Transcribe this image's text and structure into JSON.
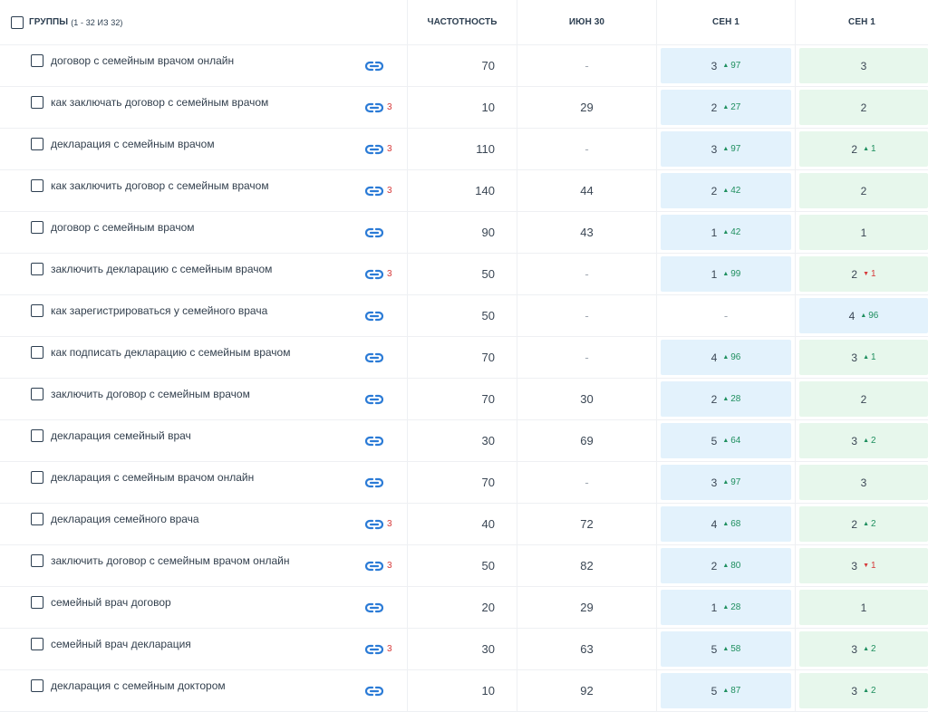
{
  "header": {
    "title": "ГРУППЫ",
    "count": "(1 - 32 ИЗ 32)",
    "col_freq": "ЧАСТОТНОСТЬ",
    "col_jun": "ИЮН 30",
    "col_sep1": "СЕН 1",
    "col_sep2": "СЕН 1"
  },
  "colors": {
    "blue_cell": "#e3f2fc",
    "green_cell": "#e7f7ec",
    "link_icon": "#2b7bd6",
    "up": "#1f8f5f",
    "down": "#d63a3a"
  },
  "rows": [
    {
      "keyword": "договор с семейным врачом онлайн",
      "links": "",
      "freq": "70",
      "jun": "-",
      "s1": {
        "val": "3",
        "delta": "97",
        "dir": "up",
        "bg": "blue"
      },
      "s2": {
        "val": "3",
        "delta": "",
        "dir": "",
        "bg": "green"
      }
    },
    {
      "keyword": "как заключать договор с семейным врачом",
      "links": "3",
      "freq": "10",
      "jun": "29",
      "s1": {
        "val": "2",
        "delta": "27",
        "dir": "up",
        "bg": "blue"
      },
      "s2": {
        "val": "2",
        "delta": "",
        "dir": "",
        "bg": "green"
      }
    },
    {
      "keyword": "декларация с семейным врачом",
      "links": "3",
      "freq": "110",
      "jun": "-",
      "s1": {
        "val": "3",
        "delta": "97",
        "dir": "up",
        "bg": "blue"
      },
      "s2": {
        "val": "2",
        "delta": "1",
        "dir": "up",
        "bg": "green"
      }
    },
    {
      "keyword": "как заключить договор с семейным врачом",
      "links": "3",
      "freq": "140",
      "jun": "44",
      "s1": {
        "val": "2",
        "delta": "42",
        "dir": "up",
        "bg": "blue"
      },
      "s2": {
        "val": "2",
        "delta": "",
        "dir": "",
        "bg": "green"
      }
    },
    {
      "keyword": "договор с семейным врачом",
      "links": "",
      "freq": "90",
      "jun": "43",
      "s1": {
        "val": "1",
        "delta": "42",
        "dir": "up",
        "bg": "blue"
      },
      "s2": {
        "val": "1",
        "delta": "",
        "dir": "",
        "bg": "green"
      }
    },
    {
      "keyword": "заключить декларацию с семейным врачом",
      "links": "3",
      "freq": "50",
      "jun": "-",
      "s1": {
        "val": "1",
        "delta": "99",
        "dir": "up",
        "bg": "blue"
      },
      "s2": {
        "val": "2",
        "delta": "1",
        "dir": "down",
        "bg": "green"
      }
    },
    {
      "keyword": "как зарегистрироваться у семейного врача",
      "links": "",
      "freq": "50",
      "jun": "-",
      "s1": {
        "val": "-",
        "delta": "",
        "dir": "",
        "bg": "none"
      },
      "s2": {
        "val": "4",
        "delta": "96",
        "dir": "up",
        "bg": "blue"
      }
    },
    {
      "keyword": "как подписать декларацию с семейным врачом",
      "links": "",
      "freq": "70",
      "jun": "-",
      "s1": {
        "val": "4",
        "delta": "96",
        "dir": "up",
        "bg": "blue"
      },
      "s2": {
        "val": "3",
        "delta": "1",
        "dir": "up",
        "bg": "green"
      }
    },
    {
      "keyword": "заключить договор с семейным врачом",
      "links": "",
      "freq": "70",
      "jun": "30",
      "s1": {
        "val": "2",
        "delta": "28",
        "dir": "up",
        "bg": "blue"
      },
      "s2": {
        "val": "2",
        "delta": "",
        "dir": "",
        "bg": "green"
      }
    },
    {
      "keyword": "декларация семейный врач",
      "links": "",
      "freq": "30",
      "jun": "69",
      "s1": {
        "val": "5",
        "delta": "64",
        "dir": "up",
        "bg": "blue"
      },
      "s2": {
        "val": "3",
        "delta": "2",
        "dir": "up",
        "bg": "green"
      }
    },
    {
      "keyword": "декларация с семейным врачом онлайн",
      "links": "",
      "freq": "70",
      "jun": "-",
      "s1": {
        "val": "3",
        "delta": "97",
        "dir": "up",
        "bg": "blue"
      },
      "s2": {
        "val": "3",
        "delta": "",
        "dir": "",
        "bg": "green"
      }
    },
    {
      "keyword": "декларация семейного врача",
      "links": "3",
      "freq": "40",
      "jun": "72",
      "s1": {
        "val": "4",
        "delta": "68",
        "dir": "up",
        "bg": "blue"
      },
      "s2": {
        "val": "2",
        "delta": "2",
        "dir": "up",
        "bg": "green"
      }
    },
    {
      "keyword": "заключить договор с семейным врачом онлайн",
      "links": "3",
      "freq": "50",
      "jun": "82",
      "s1": {
        "val": "2",
        "delta": "80",
        "dir": "up",
        "bg": "blue"
      },
      "s2": {
        "val": "3",
        "delta": "1",
        "dir": "down",
        "bg": "green"
      }
    },
    {
      "keyword": "семейный врач договор",
      "links": "",
      "freq": "20",
      "jun": "29",
      "s1": {
        "val": "1",
        "delta": "28",
        "dir": "up",
        "bg": "blue"
      },
      "s2": {
        "val": "1",
        "delta": "",
        "dir": "",
        "bg": "green"
      }
    },
    {
      "keyword": "семейный врач декларация",
      "links": "3",
      "freq": "30",
      "jun": "63",
      "s1": {
        "val": "5",
        "delta": "58",
        "dir": "up",
        "bg": "blue"
      },
      "s2": {
        "val": "3",
        "delta": "2",
        "dir": "up",
        "bg": "green"
      }
    },
    {
      "keyword": "декларация с семейным доктором",
      "links": "",
      "freq": "10",
      "jun": "92",
      "s1": {
        "val": "5",
        "delta": "87",
        "dir": "up",
        "bg": "blue"
      },
      "s2": {
        "val": "3",
        "delta": "2",
        "dir": "up",
        "bg": "green"
      }
    }
  ]
}
